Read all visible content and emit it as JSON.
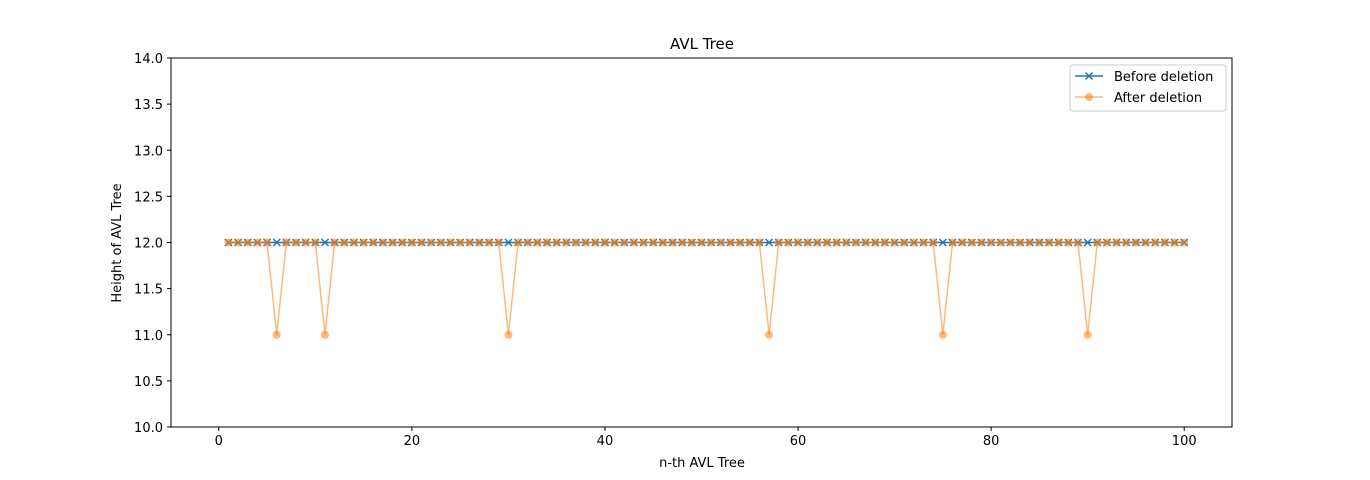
{
  "chart_data": {
    "type": "line",
    "title": "AVL Tree",
    "xlabel": "n-th AVL Tree",
    "ylabel": "Height of AVL Tree",
    "xlim": [
      -4.95,
      104.95
    ],
    "ylim": [
      10.0,
      14.0
    ],
    "xticks": [
      0,
      20,
      40,
      60,
      80,
      100
    ],
    "yticks": [
      10.0,
      10.5,
      11.0,
      11.5,
      12.0,
      12.5,
      13.0,
      13.5,
      14.0
    ],
    "xtick_labels": [
      "0",
      "20",
      "40",
      "60",
      "80",
      "100"
    ],
    "ytick_labels": [
      "10.0",
      "10.5",
      "11.0",
      "11.5",
      "12.0",
      "12.5",
      "13.0",
      "13.5",
      "14.0"
    ],
    "grid": false,
    "legend_position": "top-right",
    "x": [
      1,
      2,
      3,
      4,
      5,
      6,
      7,
      8,
      9,
      10,
      11,
      12,
      13,
      14,
      15,
      16,
      17,
      18,
      19,
      20,
      21,
      22,
      23,
      24,
      25,
      26,
      27,
      28,
      29,
      30,
      31,
      32,
      33,
      34,
      35,
      36,
      37,
      38,
      39,
      40,
      41,
      42,
      43,
      44,
      45,
      46,
      47,
      48,
      49,
      50,
      51,
      52,
      53,
      54,
      55,
      56,
      57,
      58,
      59,
      60,
      61,
      62,
      63,
      64,
      65,
      66,
      67,
      68,
      69,
      70,
      71,
      72,
      73,
      74,
      75,
      76,
      77,
      78,
      79,
      80,
      81,
      82,
      83,
      84,
      85,
      86,
      87,
      88,
      89,
      90,
      91,
      92,
      93,
      94,
      95,
      96,
      97,
      98,
      99,
      100
    ],
    "series": [
      {
        "name": "Before deletion",
        "color": "#1f77b4",
        "marker": "x",
        "alpha": 1.0,
        "values": [
          12,
          12,
          12,
          12,
          12,
          12,
          12,
          12,
          12,
          12,
          12,
          12,
          12,
          12,
          12,
          12,
          12,
          12,
          12,
          12,
          12,
          12,
          12,
          12,
          12,
          12,
          12,
          12,
          12,
          12,
          12,
          12,
          12,
          12,
          12,
          12,
          12,
          12,
          12,
          12,
          12,
          12,
          12,
          12,
          12,
          12,
          12,
          12,
          12,
          12,
          12,
          12,
          12,
          12,
          12,
          12,
          12,
          12,
          12,
          12,
          12,
          12,
          12,
          12,
          12,
          12,
          12,
          12,
          12,
          12,
          12,
          12,
          12,
          12,
          12,
          12,
          12,
          12,
          12,
          12,
          12,
          12,
          12,
          12,
          12,
          12,
          12,
          12,
          12,
          12,
          12,
          12,
          12,
          12,
          12,
          12,
          12,
          12,
          12,
          12
        ]
      },
      {
        "name": "After deletion",
        "color": "#ff7f0e",
        "marker": "o",
        "alpha": 0.55,
        "values": [
          12,
          12,
          12,
          12,
          12,
          11,
          12,
          12,
          12,
          12,
          11,
          12,
          12,
          12,
          12,
          12,
          12,
          12,
          12,
          12,
          12,
          12,
          12,
          12,
          12,
          12,
          12,
          12,
          12,
          11,
          12,
          12,
          12,
          12,
          12,
          12,
          12,
          12,
          12,
          12,
          12,
          12,
          12,
          12,
          12,
          12,
          12,
          12,
          12,
          12,
          12,
          12,
          12,
          12,
          12,
          12,
          11,
          12,
          12,
          12,
          12,
          12,
          12,
          12,
          12,
          12,
          12,
          12,
          12,
          12,
          12,
          12,
          12,
          12,
          11,
          12,
          12,
          12,
          12,
          12,
          12,
          12,
          12,
          12,
          12,
          12,
          12,
          12,
          12,
          11,
          12,
          12,
          12,
          12,
          12,
          12,
          12,
          12,
          12,
          12
        ]
      }
    ]
  }
}
